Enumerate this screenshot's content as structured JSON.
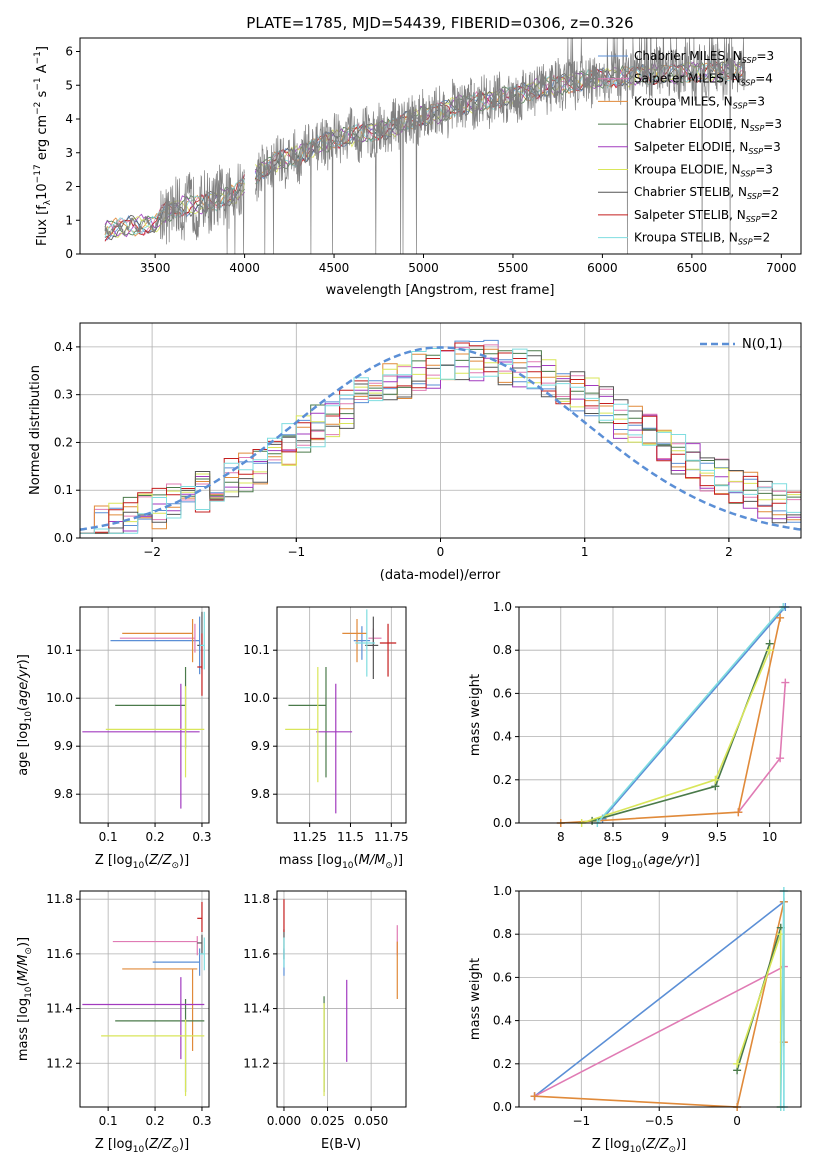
{
  "figure": {
    "title": "PLATE=1785, MJD=54439, FIBERID=0306, z=0.326"
  },
  "colors": {
    "Chabrier MILES": "#5b8fd6",
    "Salpeter MILES": "#e07bb4",
    "Kroupa MILES": "#e08a3a",
    "Chabrier ELODIE": "#4a7a4a",
    "Salpeter ELODIE": "#a23bbf",
    "Kroupa ELODIE": "#d9e65a",
    "Chabrier STELIB": "#555555",
    "Salpeter STELIB": "#c41f1f",
    "Kroupa STELIB": "#7fdde0",
    "data": "#808080",
    "normal": "#5b8fd6"
  },
  "chart_data": [
    {
      "id": "spectrum",
      "type": "line",
      "title": "PLATE=1785, MJD=54439, FIBERID=0306, z=0.326",
      "xlabel": "wavelength [Angstrom, rest frame]",
      "ylabel": "Flux [f_λ 10^-17 erg cm^-2 s^-1 A^-1]",
      "xlim": [
        3080,
        7110
      ],
      "ylim": [
        0,
        6.4
      ],
      "xticks": [
        3500,
        4000,
        4500,
        5000,
        5500,
        6000,
        6500,
        7000
      ],
      "yticks": [
        0,
        1,
        2,
        3,
        4,
        5,
        6
      ],
      "grid": false,
      "legend_position": "top-right",
      "legend": [
        "Chabrier MILES, N_SSP=3",
        "Salpeter MILES, N_SSP=4",
        "Kroupa MILES, N_SSP=3",
        "Chabrier ELODIE, N_SSP=3",
        "Salpeter ELODIE, N_SSP=3",
        "Kroupa ELODIE, N_SSP=3",
        "Chabrier STELIB, N_SSP=2",
        "Salpeter STELIB, N_SSP=2",
        "Kroupa STELIB, N_SSP=2"
      ],
      "model_continuum": {
        "x": [
          3220,
          3400,
          3500,
          3550,
          3650,
          3750,
          3850,
          3950,
          4000,
          4100,
          4200,
          4300,
          4400,
          4500,
          4600,
          4700,
          4800,
          4900,
          5000,
          5100,
          5200,
          5300,
          5400,
          5500,
          5600,
          5700,
          5800,
          5900,
          6000,
          6200,
          6400,
          6600,
          6800
        ],
        "y": [
          0.7,
          0.85,
          0.9,
          1.2,
          1.4,
          1.45,
          1.6,
          1.8,
          2.1,
          2.5,
          2.8,
          2.9,
          3.2,
          3.4,
          3.5,
          3.6,
          3.7,
          3.9,
          4.1,
          4.2,
          4.4,
          4.5,
          4.6,
          4.7,
          4.85,
          4.95,
          5.05,
          5.15,
          5.2,
          5.3,
          5.35,
          5.4,
          5.45
        ]
      }
    },
    {
      "id": "residuals",
      "type": "line",
      "xlabel": "(data-model)/error",
      "ylabel": "Normed distribution",
      "xlim": [
        -2.5,
        2.5
      ],
      "ylim": [
        0,
        0.45
      ],
      "xticks": [
        -2,
        -1,
        0,
        1,
        2
      ],
      "yticks": [
        0.0,
        0.1,
        0.2,
        0.3,
        0.4
      ],
      "grid": true,
      "legend_position": "top-right",
      "legend": [
        "N(0,1)"
      ]
    },
    {
      "id": "age_vs_Z",
      "type": "scatter",
      "xlabel": "Z [log10(Z/Z⊙)]",
      "ylabel": "age  [log10(age/yr)]",
      "xlim": [
        0.04,
        0.315
      ],
      "ylim": [
        9.74,
        10.19
      ],
      "xticks": [
        0.1,
        0.2,
        0.3
      ],
      "yticks": [
        9.8,
        9.9,
        10.0,
        10.1
      ],
      "points": [
        {
          "model": "Chabrier MILES",
          "x": 0.295,
          "xerr": [
            0.19,
            0.0
          ],
          "y": 10.12,
          "yerr": [
            0.07,
            0.05
          ]
        },
        {
          "model": "Salpeter MILES",
          "x": 0.285,
          "xerr": [
            0.16,
            0.0
          ],
          "y": 10.125,
          "yerr": [
            0.03,
            0.03
          ]
        },
        {
          "model": "Kroupa MILES",
          "x": 0.28,
          "xerr": [
            0.15,
            0.0
          ],
          "y": 10.135,
          "yerr": [
            0.06,
            0.03
          ]
        },
        {
          "model": "Chabrier ELODIE",
          "x": 0.265,
          "xerr": [
            0.15,
            0.0
          ],
          "y": 9.985,
          "yerr": [
            0.09,
            0.08
          ]
        },
        {
          "model": "Salpeter ELODIE",
          "x": 0.255,
          "xerr": [
            0.21,
            0.04
          ],
          "y": 9.93,
          "yerr": [
            0.16,
            0.1
          ]
        },
        {
          "model": "Kroupa ELODIE",
          "x": 0.265,
          "xerr": [
            0.17,
            0.04
          ],
          "y": 9.935,
          "yerr": [
            0.1,
            0.09
          ]
        },
        {
          "model": "Chabrier STELIB",
          "x": 0.3,
          "xerr": [
            0.01,
            0.0
          ],
          "y": 10.11,
          "yerr": [
            0.05,
            0.07
          ]
        },
        {
          "model": "Salpeter STELIB",
          "x": 0.3,
          "xerr": [
            0.01,
            0.0
          ],
          "y": 10.065,
          "yerr": [
            0.06,
            0.07
          ]
        },
        {
          "model": "Kroupa STELIB",
          "x": 0.305,
          "xerr": [
            0.01,
            0.0
          ],
          "y": 10.11,
          "yerr": [
            0.05,
            0.07
          ]
        }
      ]
    },
    {
      "id": "age_vs_mass",
      "type": "scatter",
      "xlabel": "mass [log10(M/M⊙)]",
      "ylabel": "",
      "xlim": [
        11.05,
        11.84
      ],
      "ylim": [
        9.74,
        10.19
      ],
      "xticks": [
        11.25,
        11.5,
        11.75
      ],
      "yticks": [
        9.8,
        9.9,
        10.0,
        10.1
      ],
      "points": [
        {
          "model": "Chabrier MILES",
          "x": 11.57,
          "xerr": [
            0.05,
            0.05
          ],
          "y": 10.12,
          "yerr": [
            0.04,
            0.03
          ]
        },
        {
          "model": "Salpeter MILES",
          "x": 11.64,
          "xerr": [
            0.03,
            0.05
          ],
          "y": 10.125,
          "yerr": [
            0.02,
            0.02
          ]
        },
        {
          "model": "Kroupa MILES",
          "x": 11.54,
          "xerr": [
            0.09,
            0.06
          ],
          "y": 10.135,
          "yerr": [
            0.06,
            0.03
          ]
        },
        {
          "model": "Chabrier ELODIE",
          "x": 11.35,
          "xerr": [
            0.23,
            0.0
          ],
          "y": 9.985,
          "yerr": [
            0.15,
            0.08
          ]
        },
        {
          "model": "Salpeter ELODIE",
          "x": 11.41,
          "xerr": [
            0.12,
            0.1
          ],
          "y": 9.93,
          "yerr": [
            0.17,
            0.1
          ]
        },
        {
          "model": "Kroupa ELODIE",
          "x": 11.3,
          "xerr": [
            0.2,
            0.0
          ],
          "y": 9.935,
          "yerr": [
            0.11,
            0.13
          ]
        },
        {
          "model": "Chabrier STELIB",
          "x": 11.64,
          "xerr": [
            0.05,
            0.03
          ],
          "y": 10.11,
          "yerr": [
            0.07,
            0.06
          ]
        },
        {
          "model": "Salpeter STELIB",
          "x": 11.73,
          "xerr": [
            0.05,
            0.05
          ],
          "y": 10.115,
          "yerr": [
            0.07,
            0.04
          ]
        },
        {
          "model": "Kroupa STELIB",
          "x": 11.6,
          "xerr": [
            0.07,
            0.05
          ],
          "y": 10.115,
          "yerr": [
            0.07,
            0.07
          ]
        }
      ]
    },
    {
      "id": "weight_vs_age",
      "type": "line",
      "xlabel": "age  [log10(age/yr)]",
      "ylabel": "mass weight",
      "xlim": [
        7.6,
        10.3
      ],
      "ylim": [
        0,
        1
      ],
      "xticks": [
        8.0,
        8.5,
        9.0,
        9.5,
        10.0
      ],
      "yticks": [
        0.0,
        0.2,
        0.4,
        0.6,
        0.8,
        1.0
      ],
      "grid": true,
      "series": [
        {
          "name": "Chabrier MILES",
          "x": [
            8.4,
            10.15
          ],
          "y": [
            0.02,
            1.0
          ]
        },
        {
          "name": "Salpeter MILES",
          "x": [
            9.7,
            10.1,
            10.15
          ],
          "y": [
            0.05,
            0.3,
            0.65
          ]
        },
        {
          "name": "Kroupa MILES",
          "x": [
            8.0,
            9.7,
            10.1
          ],
          "y": [
            0.0,
            0.05,
            0.95
          ]
        },
        {
          "name": "Chabrier ELODIE",
          "x": [
            8.3,
            9.48,
            10.0
          ],
          "y": [
            0.01,
            0.17,
            0.83
          ]
        },
        {
          "name": "Kroupa ELODIE",
          "x": [
            8.2,
            9.48,
            10.0
          ],
          "y": [
            0.0,
            0.2,
            0.8
          ]
        },
        {
          "name": "Kroupa STELIB",
          "x": [
            8.35,
            10.13
          ],
          "y": [
            0.0,
            1.0
          ]
        }
      ]
    },
    {
      "id": "mass_vs_Z",
      "type": "scatter",
      "xlabel": "Z [log10(Z/Z⊙)]",
      "ylabel": "mass [log10(M/M⊙)]",
      "xlim": [
        0.04,
        0.315
      ],
      "ylim": [
        11.04,
        11.83
      ],
      "xticks": [
        0.1,
        0.2,
        0.3
      ],
      "yticks": [
        11.2,
        11.4,
        11.6,
        11.8
      ],
      "points": [
        {
          "model": "Chabrier MILES",
          "x": 0.295,
          "xerr": [
            0.1,
            0.0
          ],
          "y": 11.57,
          "yerr": [
            0.05,
            0.05
          ]
        },
        {
          "model": "Salpeter MILES",
          "x": 0.29,
          "xerr": [
            0.18,
            0.0
          ],
          "y": 11.645,
          "yerr": [
            0.05,
            0.02
          ]
        },
        {
          "model": "Kroupa MILES",
          "x": 0.28,
          "xerr": [
            0.15,
            0.01
          ],
          "y": 11.545,
          "yerr": [
            0.3,
            0.0
          ]
        },
        {
          "model": "Chabrier ELODIE",
          "x": 0.265,
          "xerr": [
            0.15,
            0.04
          ],
          "y": 11.355,
          "yerr": [
            0.26,
            0.08
          ]
        },
        {
          "model": "Salpeter ELODIE",
          "x": 0.255,
          "xerr": [
            0.21,
            0.05
          ],
          "y": 11.415,
          "yerr": [
            0.2,
            0.1
          ]
        },
        {
          "model": "Kroupa ELODIE",
          "x": 0.265,
          "xerr": [
            0.18,
            0.04
          ],
          "y": 11.3,
          "yerr": [
            0.22,
            0.06
          ]
        },
        {
          "model": "Chabrier STELIB",
          "x": 0.3,
          "xerr": [
            0.01,
            0.0
          ],
          "y": 11.64,
          "yerr": [
            0.04,
            0.03
          ]
        },
        {
          "model": "Salpeter STELIB",
          "x": 0.3,
          "xerr": [
            0.01,
            0.0
          ],
          "y": 11.73,
          "yerr": [
            0.05,
            0.06
          ]
        },
        {
          "model": "Kroupa STELIB",
          "x": 0.305,
          "xerr": [
            0.01,
            0.0
          ],
          "y": 11.6,
          "yerr": [
            0.06,
            0.06
          ]
        }
      ]
    },
    {
      "id": "mass_vs_ebv",
      "type": "scatter",
      "xlabel": "E(B-V)",
      "ylabel": "",
      "xlim": [
        -0.004,
        0.07
      ],
      "ylim": [
        11.04,
        11.83
      ],
      "xticks": [
        0.0,
        0.025,
        0.05
      ],
      "xticklabels": [
        "0.000",
        "0.025",
        "0.050"
      ],
      "yticks": [
        11.2,
        11.4,
        11.6,
        11.8
      ],
      "points": [
        {
          "model": "Chabrier MILES",
          "x": 0.0,
          "y": 11.57,
          "yerr": [
            0.05,
            0.05
          ]
        },
        {
          "model": "Salpeter MILES",
          "x": 0.065,
          "y": 11.645,
          "yerr": [
            0.05,
            0.06
          ]
        },
        {
          "model": "Kroupa MILES",
          "x": 0.065,
          "y": 11.545,
          "yerr": [
            0.11,
            0.1
          ]
        },
        {
          "model": "Chabrier ELODIE",
          "x": 0.023,
          "y": 11.355,
          "yerr": [
            0.26,
            0.09
          ]
        },
        {
          "model": "Salpeter ELODIE",
          "x": 0.036,
          "y": 11.415,
          "yerr": [
            0.21,
            0.09
          ]
        },
        {
          "model": "Kroupa ELODIE",
          "x": 0.023,
          "y": 11.3,
          "yerr": [
            0.22,
            0.12
          ]
        },
        {
          "model": "Chabrier STELIB",
          "x": 0.0,
          "y": 11.64,
          "yerr": [
            0.06,
            0.05
          ]
        },
        {
          "model": "Salpeter STELIB",
          "x": 0.0,
          "y": 11.73,
          "yerr": [
            0.05,
            0.07
          ]
        },
        {
          "model": "Kroupa STELIB",
          "x": 0.0,
          "y": 11.6,
          "yerr": [
            0.05,
            0.06
          ]
        }
      ]
    },
    {
      "id": "weight_vs_Z",
      "type": "line",
      "xlabel": "Z [log10(Z/Z⊙)]",
      "ylabel": "mass weight",
      "xlim": [
        -1.4,
        0.41
      ],
      "ylim": [
        0,
        1
      ],
      "xticks": [
        -1.0,
        -0.5,
        0.0
      ],
      "yticks": [
        0.0,
        0.2,
        0.4,
        0.6,
        0.8,
        1.0
      ],
      "grid": true,
      "series": [
        {
          "name": "Chabrier MILES",
          "x": [
            -1.3,
            0.3
          ],
          "y": [
            0.05,
            0.95
          ]
        },
        {
          "name": "Salpeter MILES",
          "x": [
            -1.3,
            0.3
          ],
          "y": [
            0.05,
            0.65
          ]
        },
        {
          "name": "Kroupa MILES",
          "x": [
            -1.3,
            0.0,
            0.3,
            0.3
          ],
          "y": [
            0.05,
            0.0,
            0.95,
            0.3
          ]
        },
        {
          "name": "Chabrier ELODIE",
          "x": [
            0.0,
            0.28
          ],
          "y": [
            0.17,
            0.83
          ]
        },
        {
          "name": "Kroupa ELODIE",
          "x": [
            0.0,
            0.28,
            0.28
          ],
          "y": [
            0.2,
            0.8,
            0.0
          ]
        },
        {
          "name": "Kroupa STELIB",
          "x": [
            0.28,
            0.3,
            0.3
          ],
          "y": [
            0.0,
            1.0,
            0.0
          ]
        }
      ]
    }
  ]
}
